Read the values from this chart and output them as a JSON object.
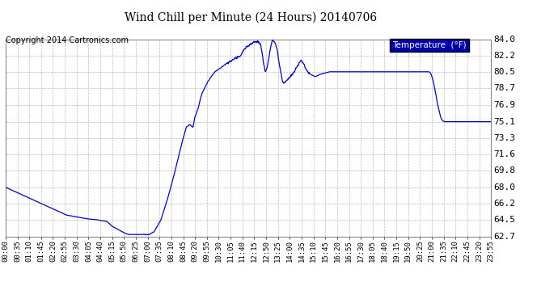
{
  "title": "Wind Chill per Minute (24 Hours) 20140706",
  "copyright_text": "Copyright 2014 Cartronics.com",
  "legend_label": "Temperature  (°F)",
  "line_color": "#0000CC",
  "background_color": "#ffffff",
  "plot_bg_color": "#ffffff",
  "grid_color": "#aaaaaa",
  "yticks": [
    62.7,
    64.5,
    66.2,
    68.0,
    69.8,
    71.6,
    73.3,
    75.1,
    76.9,
    78.7,
    80.5,
    82.2,
    84.0
  ],
  "ylim": [
    62.7,
    84.0
  ],
  "total_minutes": 1440,
  "x_tick_labels": [
    "00:00",
    "00:35",
    "01:10",
    "01:45",
    "02:20",
    "02:55",
    "03:30",
    "04:05",
    "04:40",
    "05:15",
    "05:50",
    "06:25",
    "07:00",
    "07:35",
    "08:10",
    "08:45",
    "09:20",
    "09:55",
    "10:30",
    "11:05",
    "11:40",
    "12:15",
    "12:50",
    "13:25",
    "14:00",
    "14:35",
    "15:10",
    "15:45",
    "16:20",
    "16:55",
    "17:30",
    "18:05",
    "18:40",
    "19:15",
    "19:50",
    "20:25",
    "21:00",
    "21:35",
    "22:10",
    "22:45",
    "23:20",
    "23:55"
  ],
  "curve_keypoints": [
    [
      0,
      68.0
    ],
    [
      30,
      67.5
    ],
    [
      60,
      67.0
    ],
    [
      90,
      66.5
    ],
    [
      120,
      66.0
    ],
    [
      150,
      65.5
    ],
    [
      180,
      65.0
    ],
    [
      210,
      64.8
    ],
    [
      240,
      64.6
    ],
    [
      270,
      64.5
    ],
    [
      300,
      64.3
    ],
    [
      315,
      63.8
    ],
    [
      330,
      63.5
    ],
    [
      345,
      63.2
    ],
    [
      355,
      63.0
    ],
    [
      365,
      62.9
    ],
    [
      395,
      62.9
    ],
    [
      410,
      62.9
    ],
    [
      415,
      62.9
    ],
    [
      425,
      62.9
    ],
    [
      440,
      63.2
    ],
    [
      460,
      64.5
    ],
    [
      480,
      66.8
    ],
    [
      500,
      69.5
    ],
    [
      520,
      72.5
    ],
    [
      535,
      74.5
    ],
    [
      545,
      74.8
    ],
    [
      555,
      74.5
    ],
    [
      560,
      75.5
    ],
    [
      570,
      76.5
    ],
    [
      580,
      78.0
    ],
    [
      600,
      79.5
    ],
    [
      620,
      80.5
    ],
    [
      640,
      81.0
    ],
    [
      660,
      81.5
    ],
    [
      680,
      82.0
    ],
    [
      695,
      82.2
    ],
    [
      705,
      82.8
    ],
    [
      715,
      83.2
    ],
    [
      725,
      83.5
    ],
    [
      735,
      83.7
    ],
    [
      745,
      83.8
    ],
    [
      755,
      83.5
    ],
    [
      760,
      82.5
    ],
    [
      765,
      81.2
    ],
    [
      770,
      80.5
    ],
    [
      775,
      81.0
    ],
    [
      780,
      82.0
    ],
    [
      785,
      83.2
    ],
    [
      790,
      83.9
    ],
    [
      795,
      83.8
    ],
    [
      800,
      83.5
    ],
    [
      805,
      82.8
    ],
    [
      810,
      81.5
    ],
    [
      815,
      80.5
    ],
    [
      820,
      79.5
    ],
    [
      825,
      79.3
    ],
    [
      830,
      79.5
    ],
    [
      840,
      79.8
    ],
    [
      850,
      80.2
    ],
    [
      860,
      80.8
    ],
    [
      870,
      81.5
    ],
    [
      875,
      81.8
    ],
    [
      880,
      81.5
    ],
    [
      885,
      81.2
    ],
    [
      890,
      80.8
    ],
    [
      895,
      80.5
    ],
    [
      900,
      80.3
    ],
    [
      910,
      80.1
    ],
    [
      915,
      80.0
    ],
    [
      920,
      80.0
    ],
    [
      930,
      80.2
    ],
    [
      940,
      80.3
    ],
    [
      950,
      80.4
    ],
    [
      960,
      80.5
    ],
    [
      970,
      80.5
    ],
    [
      980,
      80.5
    ],
    [
      990,
      80.5
    ],
    [
      1000,
      80.5
    ],
    [
      1010,
      80.5
    ],
    [
      1020,
      80.5
    ],
    [
      1030,
      80.5
    ],
    [
      1040,
      80.5
    ],
    [
      1050,
      80.5
    ],
    [
      1060,
      80.5
    ],
    [
      1070,
      80.5
    ],
    [
      1080,
      80.5
    ],
    [
      1090,
      80.5
    ],
    [
      1100,
      80.5
    ],
    [
      1110,
      80.5
    ],
    [
      1120,
      80.5
    ],
    [
      1130,
      80.5
    ],
    [
      1140,
      80.5
    ],
    [
      1150,
      80.5
    ],
    [
      1160,
      80.5
    ],
    [
      1170,
      80.5
    ],
    [
      1180,
      80.5
    ],
    [
      1190,
      80.5
    ],
    [
      1200,
      80.5
    ],
    [
      1210,
      80.5
    ],
    [
      1220,
      80.5
    ],
    [
      1230,
      80.5
    ],
    [
      1240,
      80.5
    ],
    [
      1250,
      80.5
    ],
    [
      1255,
      80.5
    ],
    [
      1260,
      80.3
    ],
    [
      1265,
      79.8
    ],
    [
      1270,
      79.0
    ],
    [
      1275,
      78.0
    ],
    [
      1280,
      77.0
    ],
    [
      1285,
      76.2
    ],
    [
      1290,
      75.5
    ],
    [
      1295,
      75.2
    ],
    [
      1300,
      75.1
    ],
    [
      1310,
      75.1
    ],
    [
      1320,
      75.1
    ],
    [
      1330,
      75.1
    ],
    [
      1340,
      75.1
    ],
    [
      1360,
      75.1
    ],
    [
      1380,
      75.1
    ],
    [
      1400,
      75.1
    ],
    [
      1420,
      75.1
    ],
    [
      1439,
      75.1
    ]
  ]
}
